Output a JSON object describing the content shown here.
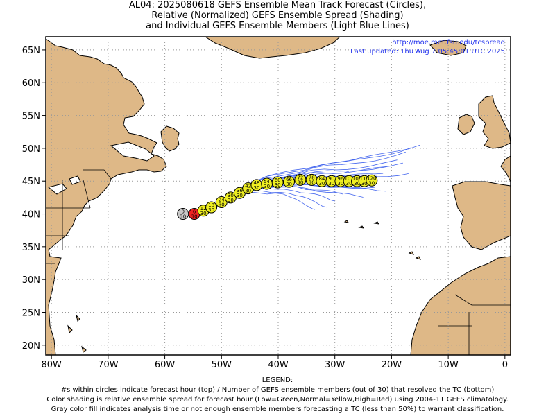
{
  "title": {
    "line1": "AL04: 2025080618 GEFS Ensemble Mean Track Forecast (Circles),",
    "line2": "Relative (Normalized) GEFS Ensemble Spread (Shading)",
    "line3": "and Individual GEFS Ensemble Members (Light Blue Lines)"
  },
  "credit": {
    "url": "http://moe.met.fsu.edu/tcspread",
    "updated": "Last updated: Thu Aug 7 05:45:01 UTC 2025"
  },
  "map": {
    "lon_range": [
      -81,
      1
    ],
    "lat_range": [
      18.5,
      67
    ],
    "lon_ticks": [
      {
        "lon": -80,
        "label": "80W"
      },
      {
        "lon": -70,
        "label": "70W"
      },
      {
        "lon": -60,
        "label": "60W"
      },
      {
        "lon": -50,
        "label": "50W"
      },
      {
        "lon": -40,
        "label": "40W"
      },
      {
        "lon": -30,
        "label": "30W"
      },
      {
        "lon": -20,
        "label": "20W"
      },
      {
        "lon": -10,
        "label": "10W"
      },
      {
        "lon": 0,
        "label": "0"
      }
    ],
    "lat_ticks": [
      {
        "lat": 20,
        "label": "20N"
      },
      {
        "lat": 25,
        "label": "25N"
      },
      {
        "lat": 30,
        "label": "30N"
      },
      {
        "lat": 35,
        "label": "35N"
      },
      {
        "lat": 40,
        "label": "40N"
      },
      {
        "lat": 45,
        "label": "45N"
      },
      {
        "lat": 50,
        "label": "50N"
      },
      {
        "lat": 55,
        "label": "55N"
      },
      {
        "lat": 60,
        "label": "60N"
      },
      {
        "lat": 65,
        "label": "65N"
      }
    ],
    "grid": "dotted",
    "colors": {
      "land": "#deb887",
      "ocean": "#ffffff",
      "member_tracks": "#4466ee",
      "coast": "#000000"
    }
  },
  "forecast_points": [
    {
      "hour": "0",
      "members": "30",
      "lon": -56.8,
      "lat": 40.0,
      "spread": "analysis"
    },
    {
      "hour": "6",
      "members": "30",
      "lon": -54.8,
      "lat": 40.0,
      "spread": "high"
    },
    {
      "hour": "12",
      "members": "30",
      "lon": -53.2,
      "lat": 40.5,
      "spread": "normal"
    },
    {
      "hour": "18",
      "members": "30",
      "lon": -51.8,
      "lat": 41.0,
      "spread": "normal"
    },
    {
      "hour": "24",
      "members": "30",
      "lon": -50.0,
      "lat": 41.8,
      "spread": "normal"
    },
    {
      "hour": "30",
      "members": "30",
      "lon": -48.4,
      "lat": 42.5,
      "spread": "normal"
    },
    {
      "hour": "36",
      "members": "30",
      "lon": -46.8,
      "lat": 43.2,
      "spread": "normal"
    },
    {
      "hour": "42",
      "members": "30",
      "lon": -45.3,
      "lat": 43.9,
      "spread": "normal"
    },
    {
      "hour": "48",
      "members": "30",
      "lon": -43.8,
      "lat": 44.4,
      "spread": "normal"
    },
    {
      "hour": "54",
      "members": "30",
      "lon": -42.0,
      "lat": 44.6,
      "spread": "normal"
    },
    {
      "hour": "60",
      "members": "30",
      "lon": -40.1,
      "lat": 44.8,
      "spread": "normal"
    },
    {
      "hour": "66",
      "members": "30",
      "lon": -38.1,
      "lat": 44.9,
      "spread": "normal"
    },
    {
      "hour": "72",
      "members": "30",
      "lon": -36.1,
      "lat": 45.2,
      "spread": "normal"
    },
    {
      "hour": "78",
      "members": "30",
      "lon": -34.1,
      "lat": 45.2,
      "spread": "normal"
    },
    {
      "hour": "84",
      "members": "30",
      "lon": -32.3,
      "lat": 45.0,
      "spread": "normal"
    },
    {
      "hour": "90",
      "members": "30",
      "lon": -30.6,
      "lat": 45.0,
      "spread": "normal"
    },
    {
      "hour": "96",
      "members": "30",
      "lon": -29.0,
      "lat": 45.0,
      "spread": "normal"
    },
    {
      "hour": "102",
      "members": "30",
      "lon": -27.5,
      "lat": 45.0,
      "spread": "normal"
    },
    {
      "hour": "108",
      "members": "30",
      "lon": -26.1,
      "lat": 45.0,
      "spread": "normal"
    },
    {
      "hour": "114",
      "members": "30",
      "lon": -24.8,
      "lat": 45.0,
      "spread": "normal"
    },
    {
      "hour": "120",
      "members": "30",
      "lon": -23.5,
      "lat": 45.1,
      "spread": "normal"
    }
  ],
  "spread_colors": {
    "analysis": "#c8c8c8",
    "high": "#ee2222",
    "normal": "#eeee22",
    "low": "#22cc22"
  },
  "legend": {
    "heading": "LEGEND:",
    "line1": "#s within circles indicate forecast hour (top) / Number of GEFS ensemble members (out of 30) that resolved the TC (bottom)",
    "line2": "Color shading is relative ensemble spread for forecast hour (Low=Green,Normal=Yellow,High=Red) using 2004-11 GEFS climatology.",
    "line3": "Gray color fill indicates analysis time or not enough ensemble members forecasting a TC (less than 50%) to warrant classification."
  }
}
